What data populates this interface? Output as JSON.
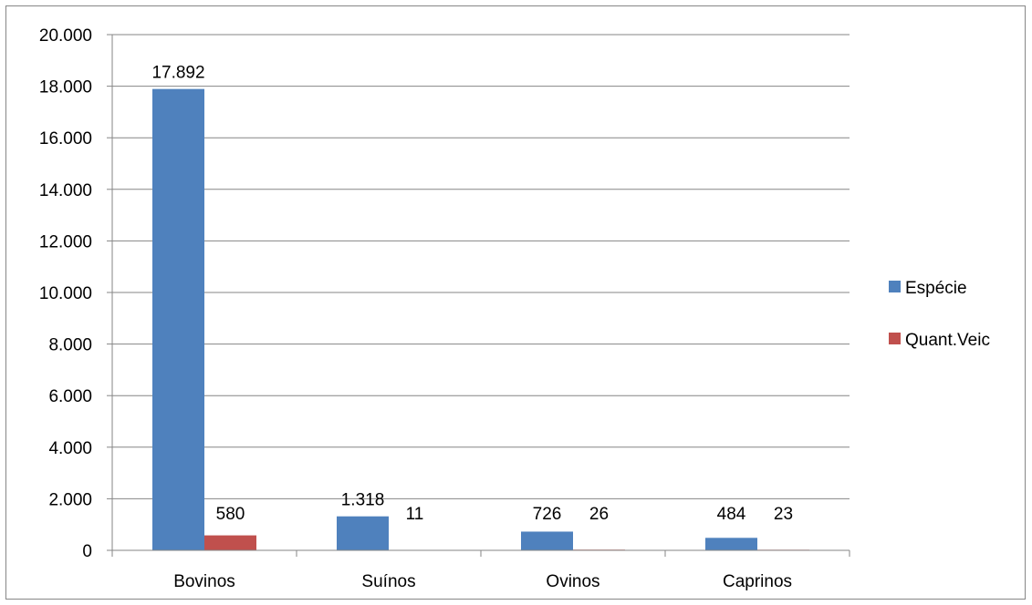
{
  "chart_data": {
    "type": "bar",
    "title": "",
    "xlabel": "",
    "ylabel": "",
    "categories": [
      "Bovinos",
      "Suínos",
      "Ovinos",
      "Caprinos"
    ],
    "series": [
      {
        "name": "Espécie",
        "values": [
          17892,
          1318,
          726,
          484
        ],
        "labels": [
          "17.892",
          "1.318",
          "726",
          "484"
        ],
        "color": "#4F81BD"
      },
      {
        "name": "Quant.Veic",
        "values": [
          580,
          11,
          26,
          23
        ],
        "labels": [
          "580",
          "11",
          "26",
          "23"
        ],
        "color": "#C0504D"
      }
    ],
    "ylim": [
      0,
      20000
    ],
    "yticks": [
      "0",
      "2.000",
      "4.000",
      "6.000",
      "8.000",
      "10.000",
      "12.000",
      "14.000",
      "16.000",
      "18.000",
      "20.000"
    ],
    "grid": true,
    "legend_position": "right"
  }
}
